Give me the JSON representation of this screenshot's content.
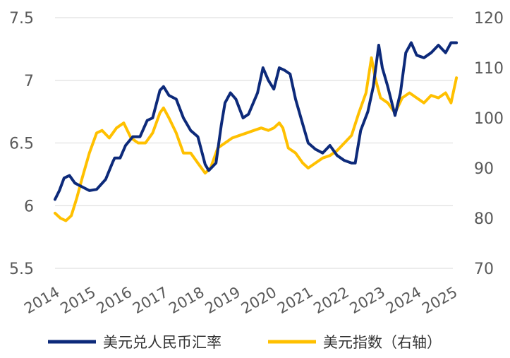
{
  "chart_data": {
    "type": "line",
    "x_ticks": [
      "2014",
      "2015",
      "2016",
      "2017",
      "2018",
      "2019",
      "2020",
      "2021",
      "2022",
      "2023",
      "2024",
      "2025"
    ],
    "y_left": {
      "ticks": [
        "5.5",
        "6",
        "6.5",
        "7",
        "7.5"
      ],
      "min": 5.5,
      "max": 7.5
    },
    "y_right": {
      "ticks": [
        "70",
        "80",
        "90",
        "100",
        "110",
        "120"
      ],
      "min": 70,
      "max": 120
    },
    "grid": true,
    "legend_position": "bottom",
    "series": [
      {
        "name": "美元兑人民币汇率",
        "axis": "left",
        "color": "#0d2a7a",
        "x": [
          2014.0,
          2014.12,
          2014.25,
          2014.4,
          2014.55,
          2014.75,
          2014.95,
          2015.15,
          2015.4,
          2015.6,
          2015.65,
          2015.8,
          2015.95,
          2016.15,
          2016.35,
          2016.55,
          2016.7,
          2016.9,
          2017.0,
          2017.15,
          2017.35,
          2017.55,
          2017.75,
          2017.95,
          2018.15,
          2018.25,
          2018.45,
          2018.6,
          2018.7,
          2018.85,
          2019.0,
          2019.2,
          2019.35,
          2019.6,
          2019.75,
          2019.9,
          2020.05,
          2020.2,
          2020.35,
          2020.5,
          2020.65,
          2020.85,
          2021.0,
          2021.2,
          2021.4,
          2021.6,
          2021.8,
          2022.0,
          2022.2,
          2022.3,
          2022.45,
          2022.65,
          2022.8,
          2022.95,
          2023.05,
          2023.2,
          2023.4,
          2023.55,
          2023.7,
          2023.85,
          2024.0,
          2024.2,
          2024.4,
          2024.6,
          2024.8,
          2024.95,
          2025.1
        ],
        "values": [
          6.05,
          6.12,
          6.22,
          6.24,
          6.18,
          6.15,
          6.12,
          6.13,
          6.21,
          6.35,
          6.38,
          6.38,
          6.48,
          6.55,
          6.55,
          6.68,
          6.7,
          6.92,
          6.95,
          6.88,
          6.85,
          6.7,
          6.6,
          6.55,
          6.33,
          6.28,
          6.34,
          6.65,
          6.82,
          6.9,
          6.85,
          6.7,
          6.73,
          6.9,
          7.1,
          7.0,
          6.93,
          7.1,
          7.08,
          7.05,
          6.85,
          6.65,
          6.5,
          6.45,
          6.42,
          6.48,
          6.4,
          6.36,
          6.34,
          6.34,
          6.6,
          6.75,
          6.95,
          7.28,
          7.1,
          6.95,
          6.72,
          6.9,
          7.22,
          7.3,
          7.2,
          7.18,
          7.22,
          7.28,
          7.22,
          7.3,
          7.3
        ]
      },
      {
        "name": "美元指数（右轴）",
        "axis": "right",
        "color": "#ffc000",
        "x": [
          2014.0,
          2014.15,
          2014.3,
          2014.45,
          2014.6,
          2014.75,
          2014.95,
          2015.15,
          2015.3,
          2015.5,
          2015.7,
          2015.9,
          2016.1,
          2016.3,
          2016.5,
          2016.7,
          2016.9,
          2017.0,
          2017.15,
          2017.35,
          2017.55,
          2017.75,
          2017.95,
          2018.15,
          2018.3,
          2018.5,
          2018.7,
          2018.9,
          2019.1,
          2019.3,
          2019.5,
          2019.7,
          2019.9,
          2020.05,
          2020.2,
          2020.3,
          2020.45,
          2020.65,
          2020.85,
          2021.0,
          2021.2,
          2021.4,
          2021.6,
          2021.8,
          2022.0,
          2022.2,
          2022.4,
          2022.6,
          2022.75,
          2022.85,
          2023.0,
          2023.2,
          2023.4,
          2023.6,
          2023.8,
          2024.0,
          2024.2,
          2024.4,
          2024.6,
          2024.8,
          2024.95,
          2025.1
        ],
        "values": [
          81,
          80,
          79.5,
          80.5,
          84,
          88,
          93,
          97,
          97.5,
          96,
          98,
          99,
          96,
          95,
          95,
          97,
          101,
          102,
          100,
          97,
          93,
          93,
          91,
          89,
          90,
          94,
          95,
          96,
          96.5,
          97,
          97.5,
          98,
          97.5,
          98,
          99,
          98,
          94,
          93,
          91,
          90,
          91,
          92,
          92.5,
          93.5,
          95,
          96.5,
          101,
          105,
          112,
          108,
          104,
          103,
          101,
          104,
          105,
          104,
          103,
          104.5,
          104,
          105,
          103,
          108
        ]
      }
    ]
  }
}
